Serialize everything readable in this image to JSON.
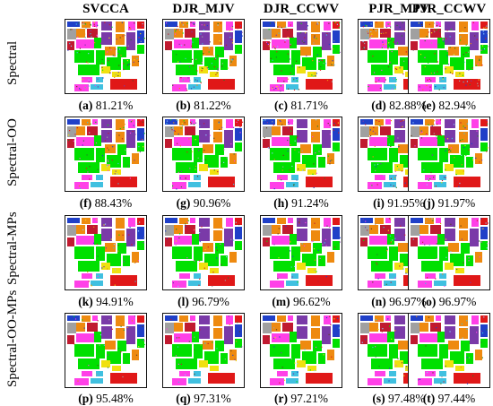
{
  "column_headers": [
    "SVCCA",
    "DJR_MJV",
    "DJR_CCWV",
    "PJR_MJV",
    "PJR_CCWV"
  ],
  "row_labels": [
    "Spectral",
    "Spectral-OO",
    "Spectral-MPs",
    "Spectral-OO-MPs"
  ],
  "rows": [
    [
      {
        "letter": "(a)",
        "value": "81.21%"
      },
      {
        "letter": "(b)",
        "value": "81.22%"
      },
      {
        "letter": "(c)",
        "value": "81.71%"
      },
      {
        "letter": "(d)",
        "value": "82.88%"
      },
      {
        "letter": "(e)",
        "value": "82.94%"
      }
    ],
    [
      {
        "letter": "(f)",
        "value": "88.43%"
      },
      {
        "letter": "(g)",
        "value": "90.96%"
      },
      {
        "letter": "(h)",
        "value": "91.24%"
      },
      {
        "letter": "(i)",
        "value": "91.95%"
      },
      {
        "letter": "(j)",
        "value": "91.97%"
      }
    ],
    [
      {
        "letter": "(k)",
        "value": "94.91%"
      },
      {
        "letter": "(l)",
        "value": "96.79%"
      },
      {
        "letter": "(m)",
        "value": "96.62%"
      },
      {
        "letter": "(n)",
        "value": "96.97%"
      },
      {
        "letter": "(o)",
        "value": "96.97%"
      }
    ],
    [
      {
        "letter": "(p)",
        "value": "95.48%"
      },
      {
        "letter": "(q)",
        "value": "97.31%"
      },
      {
        "letter": "(r)",
        "value": "97.21%"
      },
      {
        "letter": "(s)",
        "value": "97.48%"
      },
      {
        "letter": "(t)",
        "value": "97.44%"
      }
    ]
  ],
  "class_colors": [
    "#00e000",
    "#ee8a10",
    "#f0e010",
    "#e01818",
    "#7a3aa8",
    "#2040c8",
    "#40c0e0",
    "#ff40e8",
    "#a0a0a0",
    "#c01a30",
    "#2a7a2a",
    "#8ac8ff",
    "#604020",
    "#ffffff"
  ]
}
